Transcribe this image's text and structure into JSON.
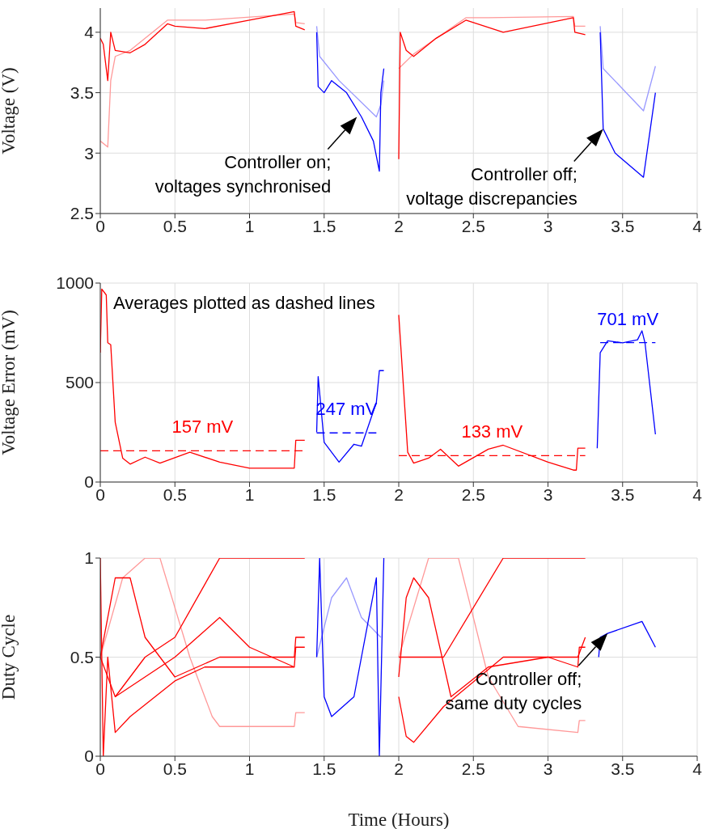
{
  "chart_data": [
    {
      "type": "line",
      "ylabel": "Voltage (V)",
      "xlim": [
        0,
        4
      ],
      "xticks": [
        0,
        0.5,
        1,
        1.5,
        2,
        2.5,
        3,
        3.5,
        4
      ],
      "ylim": [
        2.5,
        4.2
      ],
      "yticks": [
        2.5,
        3,
        3.5,
        4
      ],
      "grid": true,
      "annotations": [
        {
          "text": "Controller on;\nvoltages synchronised",
          "x": 1.72,
          "y": 3.3
        },
        {
          "text": "Controller off;\nvoltage discrepancies",
          "x": 3.37,
          "y": 3.2
        }
      ],
      "series": [
        {
          "color": "#ff9999",
          "x": [
            0,
            0.05,
            0.07,
            0.1,
            0.2,
            0.45,
            0.7,
            1.3,
            1.31,
            1.37
          ],
          "values": [
            3.1,
            3.05,
            3.6,
            3.8,
            3.85,
            4.1,
            4.1,
            4.15,
            4.08,
            4.07
          ]
        },
        {
          "color": "#ff0000",
          "x": [
            0,
            0.02,
            0.05,
            0.07,
            0.1,
            0.2,
            0.3,
            0.45,
            0.5,
            0.7,
            1.0,
            1.3,
            1.31,
            1.37
          ],
          "values": [
            3.95,
            3.9,
            3.6,
            4.0,
            3.85,
            3.83,
            3.9,
            4.07,
            4.05,
            4.03,
            4.1,
            4.17,
            4.05,
            4.02
          ]
        },
        {
          "color": "#9999ff",
          "x": [
            1.45,
            1.47,
            1.6,
            1.85,
            1.88,
            1.9
          ],
          "values": [
            4.05,
            3.8,
            3.6,
            3.3,
            3.4,
            3.6
          ]
        },
        {
          "color": "#0000ff",
          "x": [
            1.45,
            1.46,
            1.5,
            1.55,
            1.65,
            1.75,
            1.83,
            1.87,
            1.88,
            1.9
          ],
          "values": [
            4.0,
            3.55,
            3.5,
            3.6,
            3.5,
            3.3,
            3.1,
            2.85,
            3.5,
            3.7
          ]
        },
        {
          "color": "#ff9999",
          "x": [
            2.0,
            2.1,
            2.45,
            2.6,
            3.17,
            3.18,
            3.25
          ],
          "values": [
            3.7,
            3.82,
            4.12,
            4.12,
            4.13,
            4.05,
            4.05
          ]
        },
        {
          "color": "#ff0000",
          "x": [
            2.0,
            2.01,
            2.05,
            2.1,
            2.25,
            2.45,
            2.7,
            3.17,
            3.18,
            3.25
          ],
          "values": [
            2.95,
            4.0,
            3.85,
            3.8,
            3.95,
            4.1,
            4.0,
            4.12,
            4.0,
            3.98
          ]
        },
        {
          "color": "#9999ff",
          "x": [
            3.35,
            3.37,
            3.64,
            3.72
          ],
          "values": [
            4.05,
            3.7,
            3.35,
            3.72
          ]
        },
        {
          "color": "#0000ff",
          "x": [
            3.35,
            3.37,
            3.45,
            3.64,
            3.72
          ],
          "values": [
            4.0,
            3.2,
            3.0,
            2.8,
            3.5
          ]
        }
      ]
    },
    {
      "type": "line",
      "ylabel": "Voltage Error (mV)",
      "xlim": [
        0,
        4
      ],
      "xticks": [
        0,
        0.5,
        1,
        1.5,
        2,
        2.5,
        3,
        3.5,
        4
      ],
      "ylim": [
        0,
        1000
      ],
      "yticks": [
        0,
        500,
        1000
      ],
      "grid": true,
      "annotations": [
        "Averages plotted as dashed lines"
      ],
      "series": [
        {
          "color": "#ff0000",
          "x": [
            0,
            0.01,
            0.04,
            0.05,
            0.07,
            0.1,
            0.15,
            0.2,
            0.3,
            0.4,
            0.6,
            0.8,
            1.0,
            1.3,
            1.31,
            1.37
          ],
          "values": [
            650,
            970,
            940,
            700,
            690,
            300,
            120,
            90,
            125,
            95,
            150,
            100,
            70,
            70,
            210,
            210
          ]
        },
        {
          "color": "#ff0000",
          "name": "157 mV",
          "line_style": "dashed",
          "x": [
            0,
            1.37
          ],
          "values": [
            157,
            157
          ]
        },
        {
          "color": "#0000ff",
          "x": [
            1.45,
            1.46,
            1.5,
            1.6,
            1.7,
            1.75,
            1.85,
            1.87,
            1.9
          ],
          "values": [
            250,
            530,
            200,
            100,
            190,
            180,
            400,
            560,
            560
          ]
        },
        {
          "color": "#0000ff",
          "name": "247 mV",
          "line_style": "dashed",
          "x": [
            1.45,
            1.85
          ],
          "values": [
            247,
            247
          ]
        },
        {
          "color": "#ff0000",
          "x": [
            2.0,
            2.06,
            2.1,
            2.2,
            2.28,
            2.4,
            2.6,
            2.7,
            3.0,
            3.17,
            3.19,
            3.2,
            3.25
          ],
          "values": [
            840,
            150,
            95,
            120,
            165,
            80,
            165,
            185,
            100,
            60,
            60,
            170,
            170
          ]
        },
        {
          "color": "#ff0000",
          "name": "133 mV",
          "line_style": "dashed",
          "x": [
            2.0,
            3.25
          ],
          "values": [
            133,
            133
          ]
        },
        {
          "color": "#0000ff",
          "x": [
            3.33,
            3.35,
            3.4,
            3.5,
            3.6,
            3.63,
            3.65,
            3.72
          ],
          "values": [
            170,
            650,
            710,
            700,
            715,
            760,
            700,
            240
          ]
        },
        {
          "color": "#0000ff",
          "name": "701 mV",
          "line_style": "dashed",
          "x": [
            3.35,
            3.72
          ],
          "values": [
            701,
            701
          ]
        }
      ]
    },
    {
      "type": "line",
      "xlabel": "Time (Hours)",
      "ylabel": "Duty Cycle",
      "xlim": [
        0,
        4
      ],
      "xticks": [
        0,
        0.5,
        1,
        1.5,
        2,
        2.5,
        3,
        3.5,
        4
      ],
      "ylim": [
        0,
        1
      ],
      "yticks": [
        0,
        0.5,
        1
      ],
      "grid": true,
      "annotations": [
        {
          "text": "Controller off;\nsame duty cycles",
          "x": 3.4,
          "y": 0.62
        }
      ],
      "series": [
        {
          "color": "#ff9999",
          "x": [
            0,
            0.15,
            0.3,
            0.4,
            0.6,
            0.75,
            0.8,
            1.3,
            1.31,
            1.37
          ],
          "values": [
            0.5,
            0.9,
            1.0,
            1.0,
            0.5,
            0.2,
            0.15,
            0.15,
            0.22,
            0.22
          ]
        },
        {
          "color": "#ff0000",
          "x": [
            0,
            0.1,
            0.3,
            0.5,
            0.8,
            1.37
          ],
          "values": [
            0.5,
            0.3,
            0.5,
            0.6,
            1.0,
            1.0
          ]
        },
        {
          "color": "#ff0000",
          "x": [
            0,
            0.02,
            0.05,
            0.1,
            0.2,
            0.5,
            0.7,
            1.3,
            1.31,
            1.37
          ],
          "values": [
            1.0,
            0.0,
            0.5,
            0.12,
            0.2,
            0.38,
            0.45,
            0.45,
            0.55,
            0.55
          ]
        },
        {
          "color": "#ff0000",
          "x": [
            0,
            0.1,
            0.2,
            0.3,
            0.5,
            0.8,
            1.3,
            1.31,
            1.37
          ],
          "values": [
            0.5,
            0.9,
            0.9,
            0.6,
            0.4,
            0.5,
            0.5,
            0.6,
            0.6
          ]
        },
        {
          "color": "#ff0000",
          "x": [
            0.1,
            0.5,
            0.8,
            1.0,
            1.3
          ],
          "values": [
            0.3,
            0.5,
            0.7,
            0.55,
            0.45
          ]
        },
        {
          "color": "#9999ff",
          "x": [
            1.45,
            1.55,
            1.65,
            1.75,
            1.88
          ],
          "values": [
            0.5,
            0.8,
            0.9,
            0.7,
            0.6
          ]
        },
        {
          "color": "#0000ff",
          "x": [
            1.45,
            1.47,
            1.5,
            1.55,
            1.7,
            1.85,
            1.87,
            1.9
          ],
          "values": [
            0.5,
            1.0,
            0.3,
            0.2,
            0.3,
            0.9,
            0.0,
            1.0
          ]
        },
        {
          "color": "#ff9999",
          "x": [
            2.0,
            2.2,
            2.4,
            2.6,
            2.8,
            3.2,
            3.21,
            3.25
          ],
          "values": [
            0.5,
            1.0,
            1.0,
            0.4,
            0.15,
            0.12,
            0.18,
            0.18
          ]
        },
        {
          "color": "#ff0000",
          "x": [
            2.0,
            2.1,
            2.3,
            2.7,
            3.25
          ],
          "values": [
            0.5,
            0.5,
            0.5,
            1.0,
            1.0
          ]
        },
        {
          "color": "#ff0000",
          "x": [
            2.0,
            2.05,
            2.1,
            2.2,
            2.35,
            2.6,
            3.0,
            3.2,
            3.21,
            3.25
          ],
          "values": [
            0.4,
            0.8,
            0.9,
            0.8,
            0.3,
            0.45,
            0.5,
            0.45,
            0.55,
            0.55
          ]
        },
        {
          "color": "#ff0000",
          "x": [
            2.0,
            2.05,
            2.1,
            2.3,
            2.7,
            3.2,
            3.25
          ],
          "values": [
            0.3,
            0.1,
            0.07,
            0.25,
            0.5,
            0.5,
            0.6
          ]
        },
        {
          "color": "#0000ff",
          "x": [
            3.34,
            3.35,
            3.4,
            3.63,
            3.72
          ],
          "values": [
            0.5,
            0.6,
            0.62,
            0.68,
            0.55
          ]
        }
      ]
    }
  ]
}
